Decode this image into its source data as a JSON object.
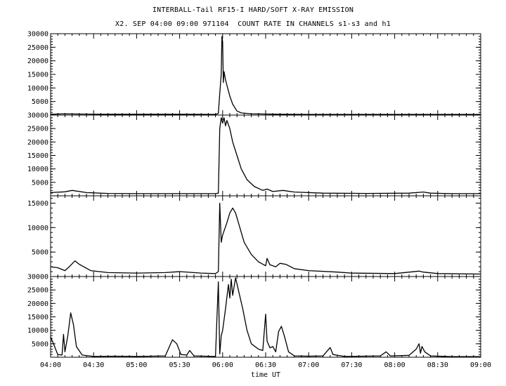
{
  "title": "INTERBALL-Tail RF15-I HARD/SOFT X-RAY EMISSION",
  "subtitle": "X2. SEP 04:00 09:00 971104  COUNT RATE IN CHANNELS s1-s3 and h1",
  "chart_data": {
    "type": "line",
    "xlabel": "time UT",
    "x_ticks": [
      "04:00",
      "04:30",
      "05:00",
      "05:30",
      "06:00",
      "06:30",
      "07:00",
      "07:30",
      "08:00",
      "08:30",
      "09:00"
    ],
    "xlim": [
      "04:00",
      "09:00"
    ],
    "grid": false,
    "panels": [
      {
        "ylim": [
          0,
          30000
        ],
        "yticks": [
          5000,
          10000,
          15000,
          20000,
          25000,
          30000
        ],
        "points": [
          [
            "04:00",
            300
          ],
          [
            "04:10",
            500
          ],
          [
            "04:20",
            400
          ],
          [
            "04:40",
            300
          ],
          [
            "05:00",
            300
          ],
          [
            "05:30",
            300
          ],
          [
            "05:55",
            250
          ],
          [
            "05:57",
            600
          ],
          [
            "05:58",
            8000
          ],
          [
            "05:59",
            15000
          ],
          [
            "05:59:30",
            29000
          ],
          [
            "06:00",
            27000
          ],
          [
            "06:00:30",
            12000
          ],
          [
            "06:01",
            16000
          ],
          [
            "06:02",
            13000
          ],
          [
            "06:03",
            11000
          ],
          [
            "06:05",
            7000
          ],
          [
            "06:07",
            4000
          ],
          [
            "06:10",
            1500
          ],
          [
            "06:13",
            800
          ],
          [
            "06:20",
            500
          ],
          [
            "06:30",
            400
          ],
          [
            "06:40",
            300
          ],
          [
            "07:00",
            250
          ],
          [
            "09:00",
            250
          ]
        ]
      },
      {
        "ylim": [
          0,
          30000
        ],
        "yticks": [
          5000,
          10000,
          15000,
          20000,
          25000,
          30000
        ],
        "points": [
          [
            "04:00",
            1200
          ],
          [
            "04:10",
            1500
          ],
          [
            "04:15",
            2000
          ],
          [
            "04:25",
            1200
          ],
          [
            "04:40",
            900
          ],
          [
            "05:00",
            800
          ],
          [
            "05:30",
            800
          ],
          [
            "05:55",
            800
          ],
          [
            "05:57",
            1000
          ],
          [
            "05:58",
            25000
          ],
          [
            "05:59",
            29000
          ],
          [
            "06:00",
            27000
          ],
          [
            "06:01",
            29000
          ],
          [
            "06:02",
            26000
          ],
          [
            "06:03",
            28000
          ],
          [
            "06:05",
            25000
          ],
          [
            "06:07",
            20000
          ],
          [
            "06:10",
            15000
          ],
          [
            "06:13",
            10000
          ],
          [
            "06:17",
            6000
          ],
          [
            "06:22",
            3500
          ],
          [
            "06:28",
            2000
          ],
          [
            "06:31",
            2500
          ],
          [
            "06:35",
            1600
          ],
          [
            "06:42",
            2000
          ],
          [
            "06:50",
            1400
          ],
          [
            "07:10",
            1000
          ],
          [
            "07:40",
            900
          ],
          [
            "08:10",
            1000
          ],
          [
            "08:20",
            1400
          ],
          [
            "08:25",
            1000
          ],
          [
            "08:40",
            800
          ],
          [
            "09:00",
            800
          ]
        ]
      },
      {
        "ylim": [
          0,
          16500
        ],
        "yticks": [
          5000,
          10000,
          15000
        ],
        "points": [
          [
            "04:00",
            2000
          ],
          [
            "04:05",
            1800
          ],
          [
            "04:10",
            1200
          ],
          [
            "04:13",
            2000
          ],
          [
            "04:17",
            3200
          ],
          [
            "04:20",
            2500
          ],
          [
            "04:28",
            1200
          ],
          [
            "04:40",
            800
          ],
          [
            "05:00",
            700
          ],
          [
            "05:20",
            800
          ],
          [
            "05:30",
            1000
          ],
          [
            "05:45",
            700
          ],
          [
            "05:55",
            600
          ],
          [
            "05:57",
            1000
          ],
          [
            "05:58",
            15000
          ],
          [
            "05:59",
            7000
          ],
          [
            "06:00",
            8500
          ],
          [
            "06:03",
            11000
          ],
          [
            "06:05",
            13000
          ],
          [
            "06:07",
            14000
          ],
          [
            "06:09",
            13000
          ],
          [
            "06:12",
            10000
          ],
          [
            "06:15",
            7000
          ],
          [
            "06:20",
            4500
          ],
          [
            "06:25",
            3000
          ],
          [
            "06:30",
            2200
          ],
          [
            "06:31",
            3700
          ],
          [
            "06:33",
            2400
          ],
          [
            "06:37",
            2000
          ],
          [
            "06:40",
            2700
          ],
          [
            "06:44",
            2500
          ],
          [
            "06:50",
            1600
          ],
          [
            "07:00",
            1200
          ],
          [
            "07:20",
            900
          ],
          [
            "07:30",
            700
          ],
          [
            "08:00",
            600
          ],
          [
            "08:17",
            1100
          ],
          [
            "08:20",
            900
          ],
          [
            "08:30",
            600
          ],
          [
            "09:00",
            500
          ]
        ]
      },
      {
        "ylim": [
          0,
          30000
        ],
        "yticks": [
          5000,
          10000,
          15000,
          20000,
          25000,
          30000
        ],
        "points": [
          [
            "04:00",
            7500
          ],
          [
            "04:02",
            5000
          ],
          [
            "04:05",
            1000
          ],
          [
            "04:08",
            800
          ],
          [
            "04:09",
            8500
          ],
          [
            "04:10",
            2000
          ],
          [
            "04:12",
            8000
          ],
          [
            "04:14",
            16500
          ],
          [
            "04:16",
            12000
          ],
          [
            "04:18",
            4000
          ],
          [
            "04:22",
            800
          ],
          [
            "04:30",
            300
          ],
          [
            "04:45",
            400
          ],
          [
            "05:00",
            300
          ],
          [
            "05:20",
            500
          ],
          [
            "05:25",
            6500
          ],
          [
            "05:28",
            5000
          ],
          [
            "05:31",
            1000
          ],
          [
            "05:35",
            800
          ],
          [
            "05:37",
            2500
          ],
          [
            "05:40",
            500
          ],
          [
            "05:55",
            300
          ],
          [
            "05:57",
            28000
          ],
          [
            "05:58",
            1200
          ],
          [
            "05:59",
            8000
          ],
          [
            "06:00",
            10000
          ],
          [
            "06:02",
            18000
          ],
          [
            "06:04",
            27000
          ],
          [
            "06:05",
            22000
          ],
          [
            "06:06",
            29000
          ],
          [
            "06:07",
            23000
          ],
          [
            "06:09",
            29500
          ],
          [
            "06:11",
            25000
          ],
          [
            "06:14",
            18000
          ],
          [
            "06:17",
            10000
          ],
          [
            "06:20",
            5000
          ],
          [
            "06:25",
            3000
          ],
          [
            "06:28",
            2500
          ],
          [
            "06:30",
            16000
          ],
          [
            "06:31",
            6000
          ],
          [
            "06:33",
            3500
          ],
          [
            "06:35",
            4000
          ],
          [
            "06:37",
            2000
          ],
          [
            "06:39",
            9500
          ],
          [
            "06:41",
            11500
          ],
          [
            "06:43",
            8000
          ],
          [
            "06:46",
            2000
          ],
          [
            "06:50",
            500
          ],
          [
            "07:00",
            400
          ],
          [
            "07:10",
            500
          ],
          [
            "07:15",
            3600
          ],
          [
            "07:17",
            1000
          ],
          [
            "07:25",
            300
          ],
          [
            "07:50",
            500
          ],
          [
            "07:54",
            2000
          ],
          [
            "07:57",
            500
          ],
          [
            "08:10",
            700
          ],
          [
            "08:15",
            3000
          ],
          [
            "08:17",
            5000
          ],
          [
            "08:18",
            1500
          ],
          [
            "08:19",
            4000
          ],
          [
            "08:21",
            2000
          ],
          [
            "08:25",
            500
          ],
          [
            "08:40",
            200
          ],
          [
            "09:00",
            200
          ]
        ]
      }
    ]
  }
}
